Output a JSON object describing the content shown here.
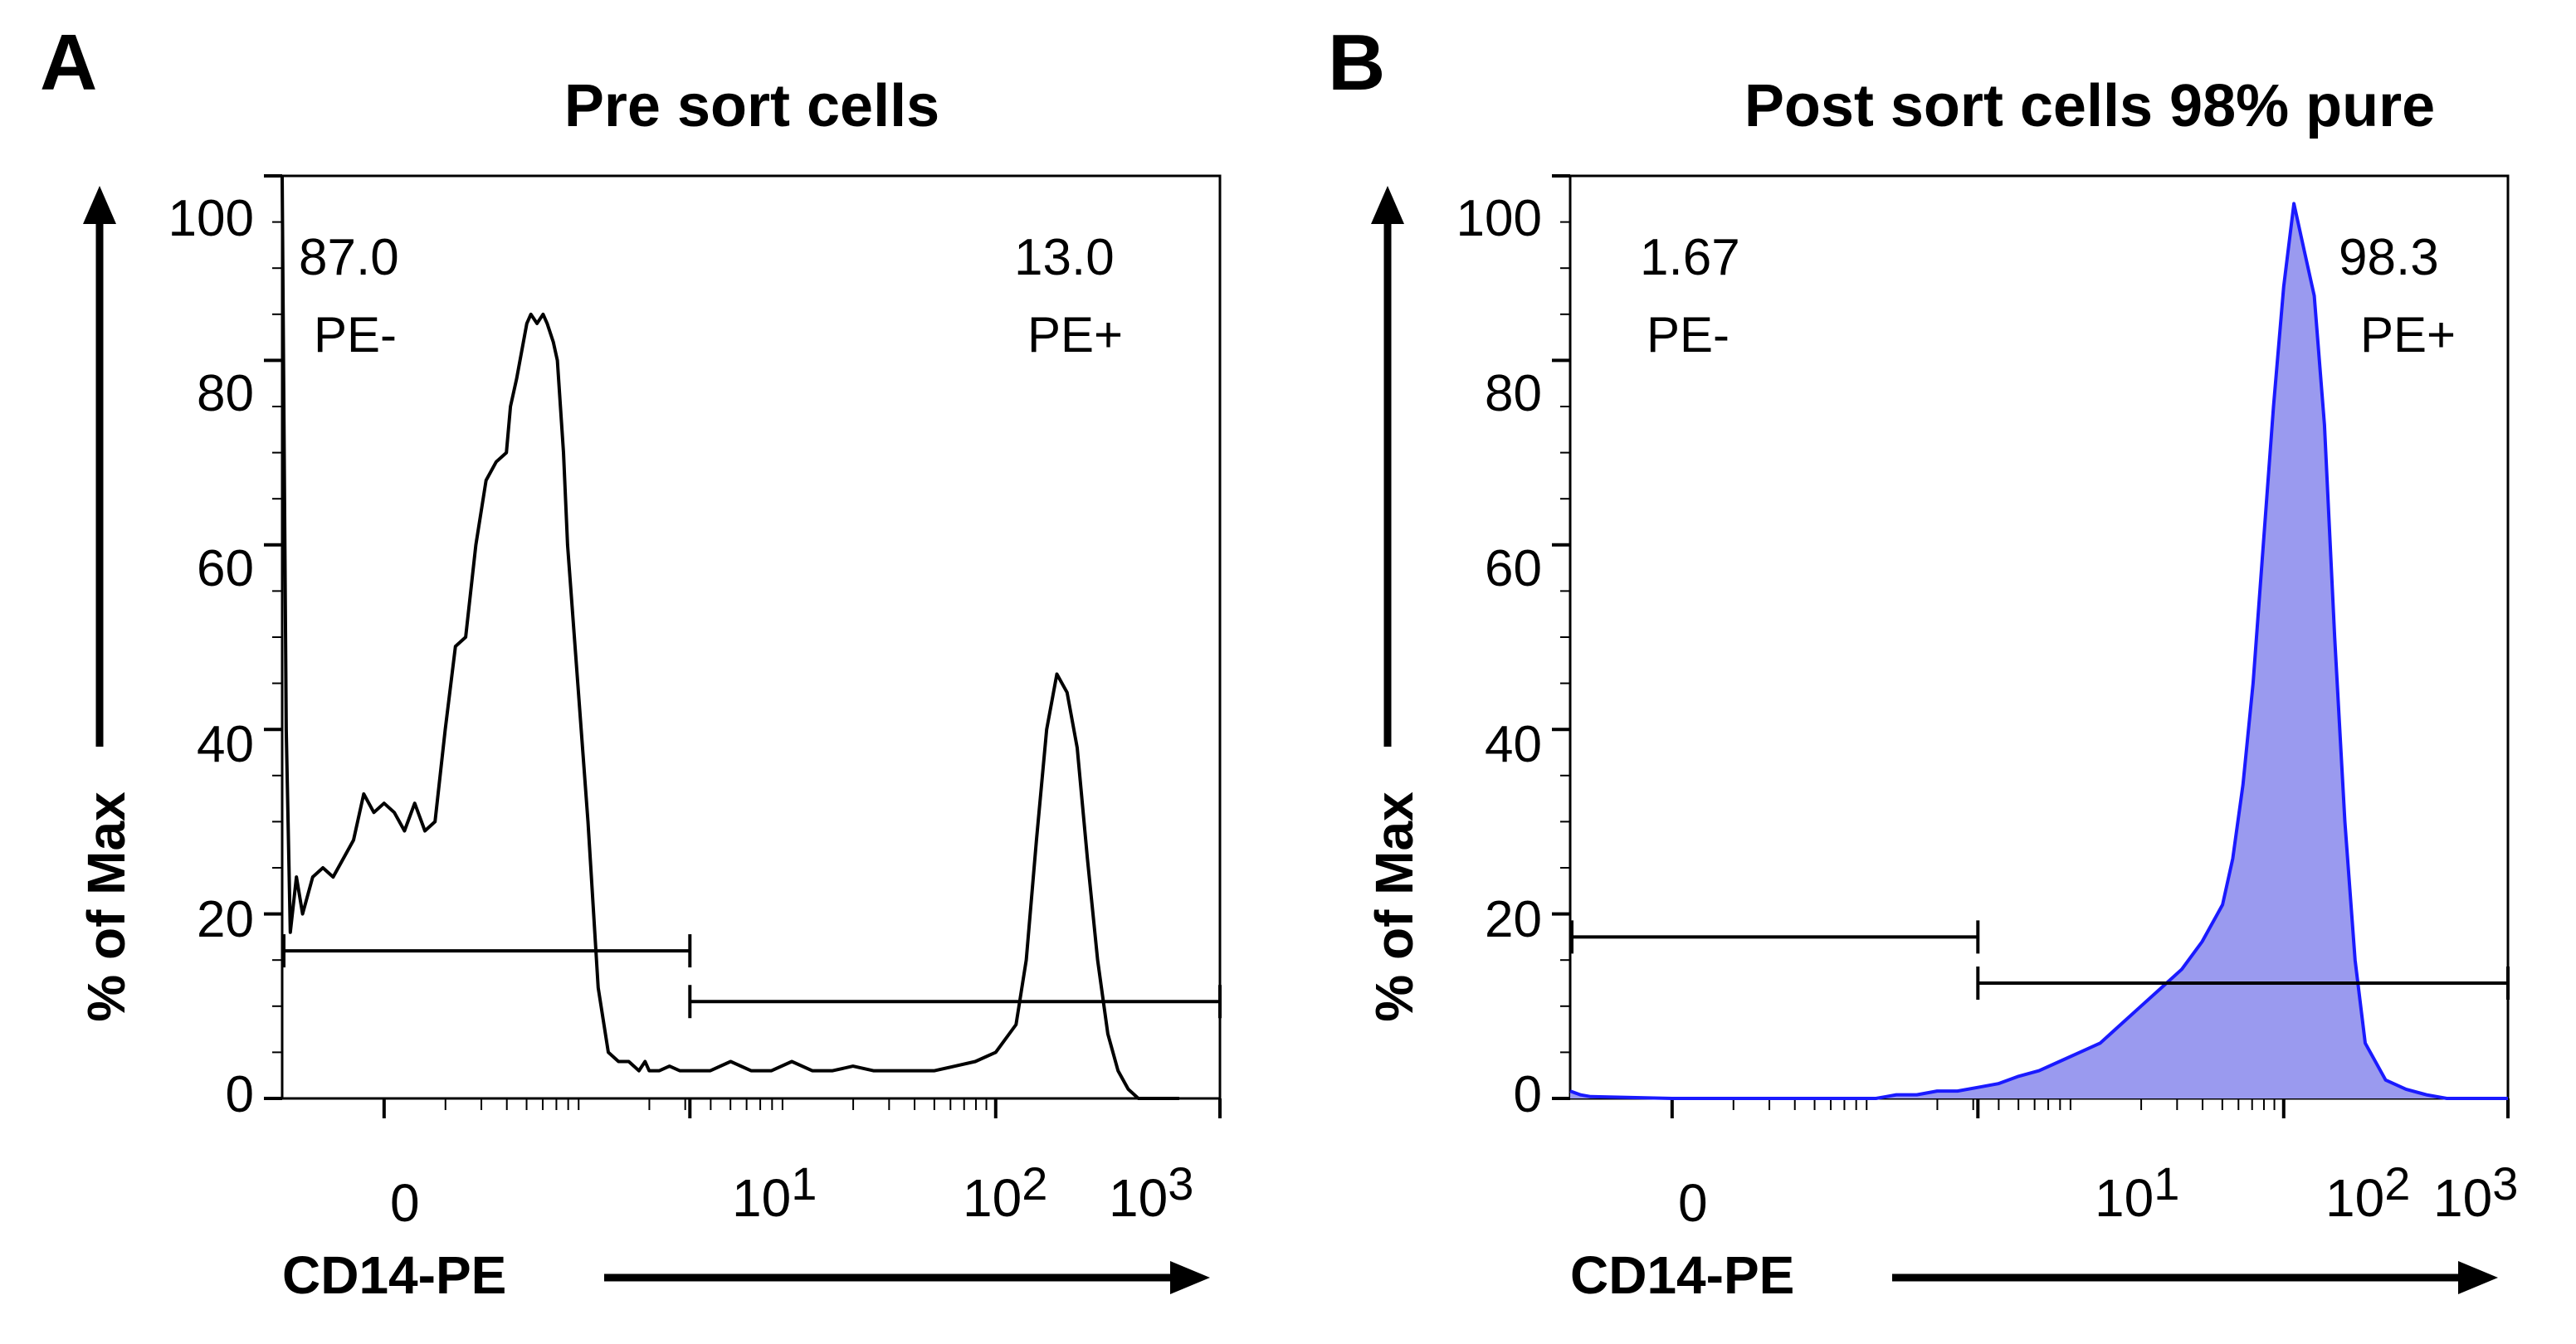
{
  "chart_data": [
    {
      "type": "line",
      "panel_label": "A",
      "title": "Pre sort cells",
      "xlabel": "CD14-PE",
      "ylabel": "% of Max",
      "ylim": [
        0,
        100
      ],
      "yticks": [
        0,
        20,
        40,
        60,
        80,
        100
      ],
      "ytick_labels": [
        "0",
        "20",
        "40",
        "60",
        "80",
        "100"
      ],
      "xscale": "biexponential",
      "xtick_labels": [
        {
          "base": "0",
          "exp": ""
        },
        {
          "base": "10",
          "exp": "1"
        },
        {
          "base": "10",
          "exp": "2"
        },
        {
          "base": "10",
          "exp": "3"
        }
      ],
      "fill": false,
      "line_color": "#000000",
      "fill_color": "",
      "x": [
        -0.5,
        -0.48,
        -0.46,
        -0.43,
        -0.4,
        -0.35,
        -0.3,
        -0.25,
        -0.2,
        -0.15,
        -0.1,
        -0.05,
        0.0,
        0.05,
        0.1,
        0.15,
        0.2,
        0.25,
        0.3,
        0.35,
        0.4,
        0.45,
        0.5,
        0.55,
        0.6,
        0.62,
        0.65,
        0.7,
        0.72,
        0.75,
        0.78,
        0.8,
        0.83,
        0.85,
        0.88,
        0.9,
        0.95,
        1.0,
        1.05,
        1.1,
        1.15,
        1.2,
        1.25,
        1.28,
        1.3,
        1.32,
        1.35,
        1.4,
        1.45,
        1.5,
        1.55,
        1.6,
        1.7,
        1.8,
        1.9,
        2.0,
        2.1,
        2.2,
        2.3,
        2.4,
        2.5,
        2.6,
        2.7,
        2.8,
        2.9,
        3.0,
        3.1,
        3.15,
        3.2,
        3.25,
        3.3,
        3.35,
        3.4,
        3.45,
        3.5,
        3.55,
        3.6,
        3.65,
        3.7,
        3.8,
        3.9
      ],
      "y": [
        100,
        40,
        18,
        24,
        20,
        24,
        25,
        24,
        26,
        28,
        33,
        31,
        32,
        31,
        29,
        32,
        29,
        30,
        40,
        49,
        50,
        60,
        67,
        69,
        70,
        75,
        78,
        84,
        85,
        84,
        85,
        84,
        82,
        80,
        70,
        60,
        45,
        30,
        12,
        5,
        4,
        4,
        3,
        4,
        3,
        3,
        3,
        3.5,
        3,
        3,
        3,
        3,
        4,
        3,
        3,
        4,
        3,
        3,
        3.5,
        3,
        3,
        3,
        3,
        3.5,
        4,
        5,
        8,
        15,
        28,
        40,
        46,
        44,
        38,
        26,
        15,
        7,
        3,
        1,
        0,
        0,
        0
      ],
      "gates": [
        {
          "name": "PE-",
          "percent": "87.0",
          "x_start": -0.5,
          "x_end": 1.5,
          "y_level": 16
        },
        {
          "name": "PE+",
          "percent": "13.0",
          "x_start": 1.5,
          "x_end": 4.1,
          "y_level": 10.5
        }
      ]
    },
    {
      "type": "area",
      "panel_label": "B",
      "title": "Post sort cells 98% pure",
      "xlabel": "CD14-PE",
      "ylabel": "% of Max",
      "ylim": [
        0,
        100
      ],
      "yticks": [
        0,
        20,
        40,
        60,
        80,
        100
      ],
      "ytick_labels": [
        "0",
        "20",
        "40",
        "60",
        "80",
        "100"
      ],
      "xscale": "biexponential",
      "xtick_labels": [
        {
          "base": "0",
          "exp": ""
        },
        {
          "base": "10",
          "exp": "1"
        },
        {
          "base": "10",
          "exp": "2"
        },
        {
          "base": "10",
          "exp": "3"
        }
      ],
      "fill": true,
      "line_color": "#1a1aff",
      "fill_color": "#9a9aef",
      "x": [
        -0.5,
        -0.45,
        -0.4,
        0.0,
        0.5,
        1.0,
        1.05,
        1.1,
        1.2,
        1.3,
        1.4,
        1.5,
        1.6,
        1.7,
        1.8,
        1.9,
        2.0,
        2.1,
        2.2,
        2.3,
        2.4,
        2.5,
        2.6,
        2.7,
        2.75,
        2.8,
        2.85,
        2.9,
        2.95,
        3.0,
        3.05,
        3.1,
        3.15,
        3.2,
        3.25,
        3.3,
        3.35,
        3.4,
        3.5,
        3.6,
        3.7,
        3.8,
        3.9,
        4.0,
        4.1
      ],
      "y": [
        0.8,
        0.4,
        0.2,
        0,
        0,
        0,
        0.2,
        0.4,
        0.4,
        0.8,
        0.8,
        1.2,
        1.6,
        2.4,
        3,
        4,
        5,
        6,
        8,
        10,
        12,
        14,
        17,
        21,
        26,
        34,
        45,
        60,
        75,
        88,
        97,
        92,
        87,
        73,
        50,
        30,
        15,
        6,
        2,
        1,
        0.4,
        0,
        0,
        0,
        0
      ],
      "gates": [
        {
          "name": "PE-",
          "percent": "1.67",
          "x_start": -0.5,
          "x_end": 1.5,
          "y_level": 17.5
        },
        {
          "name": "PE+",
          "percent": "98.3",
          "x_start": 1.5,
          "x_end": 4.1,
          "y_level": 12.5
        }
      ]
    }
  ]
}
